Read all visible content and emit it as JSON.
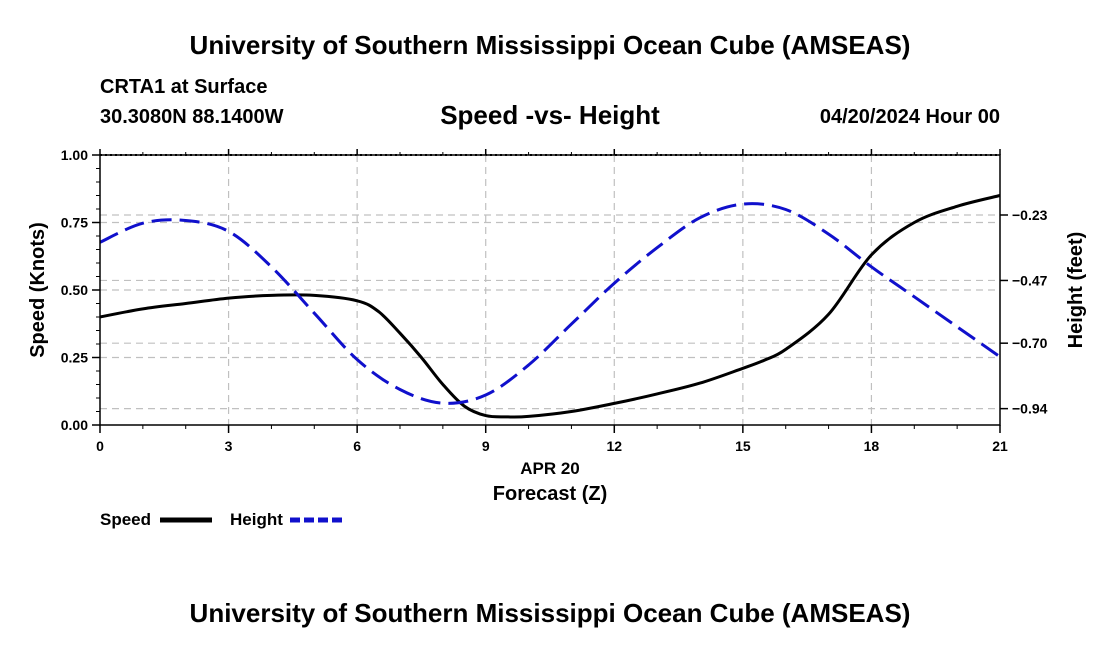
{
  "header": {
    "title": "University of Southern Mississippi Ocean Cube (AMSEAS)",
    "station": "CRTA1 at Surface",
    "coords": "30.3080N  88.1400W",
    "subtitle": "Speed -vs- Height",
    "datestamp": "04/20/2024 Hour 00"
  },
  "footer": {
    "title": "University of Southern Mississippi Ocean Cube (AMSEAS)"
  },
  "chart_data": {
    "type": "line",
    "title": "Speed -vs- Height",
    "xlabel_date": "APR 20",
    "xlabel": "Forecast (Z)",
    "ylabel": "Speed (Knots)",
    "y2label": "Height (feet)",
    "xlim": [
      0,
      21
    ],
    "ylim": [
      0,
      1
    ],
    "y2lim": [
      -1.0,
      -0.01
    ],
    "grid": true,
    "legend_position": "bottom-left",
    "x_ticks": [
      0,
      3,
      6,
      9,
      12,
      15,
      18,
      21
    ],
    "x_tick_labels": [
      "0",
      "3",
      "6",
      "9",
      "12",
      "15",
      "18",
      "21"
    ],
    "y_ticks": [
      0,
      0.25,
      0.5,
      0.75,
      1.0
    ],
    "y_tick_labels": [
      "0.00",
      "0.25",
      "0.50",
      "0.75",
      "1.00"
    ],
    "y2_ticks": [
      -0.94,
      -0.7,
      -0.47,
      -0.23
    ],
    "y2_tick_labels": [
      "−0.94",
      "−0.70",
      "−0.47",
      "−0.23"
    ],
    "series": [
      {
        "name": "Speed",
        "axis": "left",
        "color": "#000000",
        "dash": "solid",
        "x": [
          0,
          1,
          2,
          3,
          4,
          5,
          6,
          6.5,
          7,
          7.5,
          8,
          8.5,
          9,
          9.5,
          10,
          11,
          12,
          13,
          14,
          15,
          15.5,
          16,
          17,
          18,
          19,
          20,
          21
        ],
        "values": [
          0.4,
          0.43,
          0.45,
          0.47,
          0.48,
          0.48,
          0.46,
          0.42,
          0.34,
          0.25,
          0.15,
          0.07,
          0.035,
          0.03,
          0.032,
          0.05,
          0.08,
          0.115,
          0.155,
          0.21,
          0.24,
          0.28,
          0.41,
          0.63,
          0.75,
          0.81,
          0.85
        ]
      },
      {
        "name": "Height",
        "axis": "right",
        "color": "#1010cc",
        "dash": "dashed",
        "x": [
          0,
          1,
          2,
          3,
          4,
          5,
          6,
          7,
          8,
          9,
          10,
          11,
          12,
          13,
          14,
          15,
          16,
          17,
          18,
          19,
          20,
          21
        ],
        "values": [
          -0.33,
          -0.26,
          -0.25,
          -0.29,
          -0.42,
          -0.59,
          -0.76,
          -0.87,
          -0.92,
          -0.89,
          -0.78,
          -0.63,
          -0.48,
          -0.35,
          -0.24,
          -0.19,
          -0.21,
          -0.3,
          -0.42,
          -0.53,
          -0.64,
          -0.75
        ]
      }
    ]
  }
}
